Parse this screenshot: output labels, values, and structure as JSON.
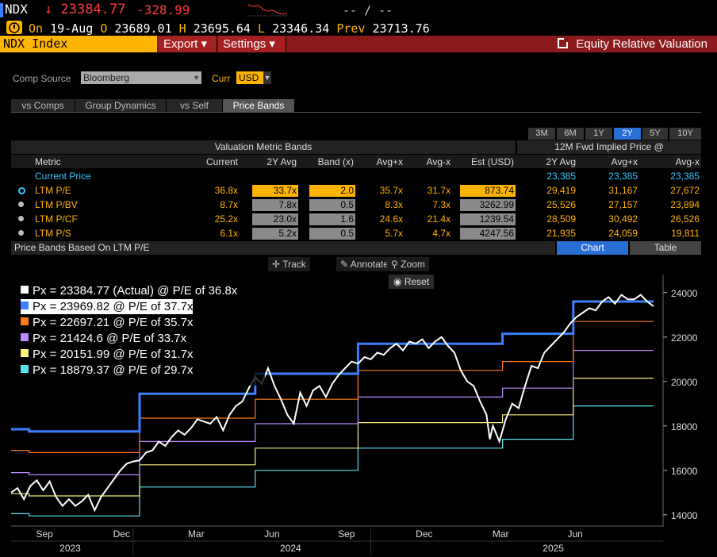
{
  "quote": {
    "ticker": "NDX",
    "arrow": "↓",
    "last": "23384.77",
    "change": "-328.99",
    "bidask": "-- / --",
    "on_label": "On",
    "date": "19-Aug",
    "open_label": "O",
    "open": "23689.01",
    "high_label": "H",
    "high": "23695.64",
    "low_label": "L",
    "low": "23346.34",
    "prev_label": "Prev",
    "prev": "23713.76"
  },
  "nav": {
    "index": "NDX Index",
    "export": "Export ▾",
    "settings": "Settings ▾",
    "function_title": "Equity Relative Valuation"
  },
  "controls": {
    "comp_source_label": "Comp Source",
    "comp_source": "Bloomberg",
    "curr_label": "Curr",
    "curr": "USD"
  },
  "tabs": [
    "vs Comps",
    "Group Dynamics",
    "vs Self",
    "Price Bands"
  ],
  "periods": [
    "3M",
    "6M",
    "1Y",
    "2Y",
    "5Y",
    "10Y"
  ],
  "active_period": "2Y",
  "table": {
    "group1": "Valuation Metric Bands",
    "group2": "12M Fwd Implied Price @",
    "headers": [
      "Metric",
      "Current",
      "2Y Avg",
      "Band (x)",
      "Avg+x",
      "Avg-x",
      "Est (USD)",
      "2Y Avg",
      "Avg+x",
      "Avg-x"
    ],
    "current_price": {
      "label": "Current Price",
      "p1": "23,385",
      "p2": "23,385",
      "p3": "23,385"
    },
    "rows": [
      {
        "metric": "LTM P/E",
        "current": "36.8x",
        "avg": "33.7x",
        "band": "2.0",
        "plus": "35.7x",
        "minus": "31.7x",
        "est": "873.74",
        "p1": "29,419",
        "p2": "31,167",
        "p3": "27,672"
      },
      {
        "metric": "LTM P/BV",
        "current": "8.7x",
        "avg": "7.8x",
        "band": "0.5",
        "plus": "8.3x",
        "minus": "7.3x",
        "est": "3262.99",
        "p1": "25,526",
        "p2": "27,157",
        "p3": "23,894"
      },
      {
        "metric": "LTM P/CF",
        "current": "25.2x",
        "avg": "23.0x",
        "band": "1.6",
        "plus": "24.6x",
        "minus": "21.4x",
        "est": "1239.54",
        "p1": "28,509",
        "p2": "30,492",
        "p3": "26,526"
      },
      {
        "metric": "LTM P/S",
        "current": "6.1x",
        "avg": "5.2x",
        "band": "0.5",
        "plus": "5.7x",
        "minus": "4.7x",
        "est": "4247.56",
        "p1": "21,935",
        "p2": "24,059",
        "p3": "19,811"
      }
    ]
  },
  "price_bands": {
    "title": "Price Bands Based On LTM P/E",
    "chart_btn": "Chart",
    "table_btn": "Table",
    "tools": {
      "track": "Track",
      "annotate": "Annotate",
      "zoom": "Zoom",
      "reset": "Reset"
    }
  },
  "colors": {
    "actual": "#ffffff",
    "b1": "#3d7fff",
    "b2": "#ff7a1a",
    "b3": "#b98cff",
    "b4": "#f7f07a",
    "b5": "#5be0f0",
    "accent": "#ffb400",
    "nav_red": "#8b1a1a"
  },
  "chart_data": {
    "type": "line",
    "title": "Price Bands Based On LTM P/E",
    "legend": [
      "Px = 23384.77 (Actual) @ P/E of 36.8x",
      "Px = 23969.82 @ P/E of 37.7x",
      "Px = 22697.21 @ P/E of 35.7x",
      "Px = 21424.6 @ P/E of 33.7x",
      "Px = 20151.99 @ P/E of 31.7x",
      "Px = 18879.37 @ P/E of 29.7x"
    ],
    "legend_placement": "top-left",
    "x_month_ticks": [
      "Sep",
      "Dec",
      "Mar",
      "Jun",
      "Sep",
      "Dec",
      "Mar",
      "Jun"
    ],
    "x_year_ticks": [
      "2023",
      "2024",
      "2025"
    ],
    "ylim": [
      13600,
      24600
    ],
    "y_ticks": [
      14000,
      16000,
      18000,
      20000,
      22000,
      24000
    ],
    "band_steps_t": [
      0,
      0.028,
      0.2,
      0.38,
      0.54,
      0.765,
      0.875,
      1.0
    ],
    "band_values": {
      "b1": [
        17850,
        17750,
        19450,
        20350,
        21700,
        22150,
        23600,
        24000
      ],
      "b2": [
        16900,
        16800,
        18350,
        19200,
        20500,
        20900,
        22700,
        22700
      ],
      "b3": [
        15900,
        15800,
        17300,
        18100,
        19300,
        19700,
        21400,
        21400
      ],
      "b4": [
        14950,
        14850,
        16250,
        17000,
        18150,
        18500,
        20150,
        20150
      ],
      "b5": [
        14050,
        13950,
        15250,
        16000,
        17000,
        17400,
        18900,
        18900
      ]
    },
    "actual": [
      [
        0,
        15000
      ],
      [
        0.01,
        15200
      ],
      [
        0.02,
        14700
      ],
      [
        0.03,
        15300
      ],
      [
        0.04,
        15550
      ],
      [
        0.05,
        15100
      ],
      [
        0.06,
        15500
      ],
      [
        0.07,
        14800
      ],
      [
        0.08,
        14400
      ],
      [
        0.09,
        14700
      ],
      [
        0.1,
        14400
      ],
      [
        0.11,
        14600
      ],
      [
        0.12,
        14900
      ],
      [
        0.13,
        14200
      ],
      [
        0.14,
        14800
      ],
      [
        0.15,
        15200
      ],
      [
        0.16,
        15600
      ],
      [
        0.17,
        16000
      ],
      [
        0.18,
        16300
      ],
      [
        0.19,
        16400
      ],
      [
        0.2,
        16450
      ],
      [
        0.21,
        16800
      ],
      [
        0.22,
        16900
      ],
      [
        0.23,
        17300
      ],
      [
        0.24,
        17100
      ],
      [
        0.25,
        17500
      ],
      [
        0.26,
        17800
      ],
      [
        0.27,
        17600
      ],
      [
        0.28,
        17900
      ],
      [
        0.29,
        18300
      ],
      [
        0.3,
        18200
      ],
      [
        0.31,
        18100
      ],
      [
        0.32,
        18400
      ],
      [
        0.33,
        17800
      ],
      [
        0.34,
        18500
      ],
      [
        0.35,
        18900
      ],
      [
        0.36,
        19100
      ],
      [
        0.37,
        19700
      ],
      [
        0.38,
        20200
      ],
      [
        0.39,
        19900
      ],
      [
        0.4,
        20600
      ],
      [
        0.41,
        19800
      ],
      [
        0.42,
        19200
      ],
      [
        0.43,
        18500
      ],
      [
        0.44,
        18100
      ],
      [
        0.45,
        19500
      ],
      [
        0.46,
        18900
      ],
      [
        0.47,
        19600
      ],
      [
        0.48,
        19800
      ],
      [
        0.49,
        19300
      ],
      [
        0.5,
        19900
      ],
      [
        0.51,
        20300
      ],
      [
        0.52,
        20600
      ],
      [
        0.53,
        20900
      ],
      [
        0.54,
        20800
      ],
      [
        0.55,
        21100
      ],
      [
        0.56,
        21000
      ],
      [
        0.57,
        21300
      ],
      [
        0.58,
        21200
      ],
      [
        0.59,
        21500
      ],
      [
        0.6,
        21700
      ],
      [
        0.61,
        21400
      ],
      [
        0.62,
        21800
      ],
      [
        0.63,
        21700
      ],
      [
        0.64,
        21900
      ],
      [
        0.65,
        21500
      ],
      [
        0.66,
        21800
      ],
      [
        0.67,
        22000
      ],
      [
        0.68,
        21600
      ],
      [
        0.69,
        21300
      ],
      [
        0.7,
        20500
      ],
      [
        0.71,
        20000
      ],
      [
        0.72,
        19800
      ],
      [
        0.73,
        19100
      ],
      [
        0.74,
        18500
      ],
      [
        0.745,
        17400
      ],
      [
        0.75,
        18000
      ],
      [
        0.76,
        17300
      ],
      [
        0.77,
        18300
      ],
      [
        0.78,
        19000
      ],
      [
        0.79,
        18800
      ],
      [
        0.8,
        19800
      ],
      [
        0.81,
        20700
      ],
      [
        0.82,
        20600
      ],
      [
        0.83,
        21300
      ],
      [
        0.84,
        21600
      ],
      [
        0.85,
        21900
      ],
      [
        0.86,
        22200
      ],
      [
        0.87,
        22600
      ],
      [
        0.88,
        22900
      ],
      [
        0.89,
        23100
      ],
      [
        0.9,
        23300
      ],
      [
        0.91,
        23200
      ],
      [
        0.92,
        23600
      ],
      [
        0.93,
        23800
      ],
      [
        0.94,
        23500
      ],
      [
        0.95,
        23900
      ],
      [
        0.96,
        23700
      ],
      [
        0.97,
        23700
      ],
      [
        0.98,
        23900
      ],
      [
        0.99,
        23600
      ],
      [
        1.0,
        23385
      ]
    ]
  }
}
